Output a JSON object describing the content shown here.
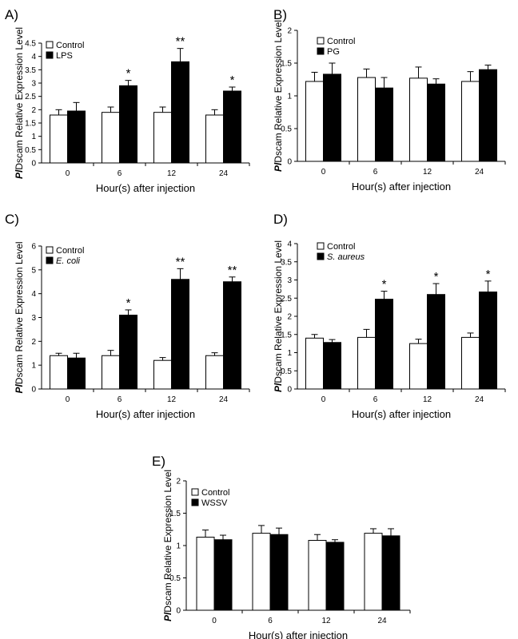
{
  "chart_data": [
    {
      "type": "bar",
      "panel_label": "A)",
      "ylabel_italic": "Pl",
      "ylabel_rest": "Dscam Relative Expression Level",
      "xlabel": "Hour(s) after injection",
      "categories": [
        "0",
        "6",
        "12",
        "24"
      ],
      "ylim": [
        0,
        4.5
      ],
      "yticks": [
        "0",
        "0.5",
        "1",
        "1.5",
        "2",
        "2.5",
        "3",
        "3.5",
        "4",
        "4.5"
      ],
      "legend": {
        "placement": "top-left",
        "items": [
          "Control",
          "LPS"
        ],
        "italic": [
          false,
          false
        ]
      },
      "series": [
        {
          "name": "Control",
          "values": [
            1.8,
            1.9,
            1.9,
            1.8
          ],
          "errors": [
            0.2,
            0.2,
            0.2,
            0.2
          ]
        },
        {
          "name": "LPS",
          "values": [
            1.95,
            2.9,
            3.8,
            2.7
          ],
          "errors": [
            0.32,
            0.2,
            0.5,
            0.15
          ]
        }
      ],
      "significance": [
        "",
        "*",
        "**",
        "*"
      ]
    },
    {
      "type": "bar",
      "panel_label": "B)",
      "ylabel_italic": "Pl",
      "ylabel_rest": "Dscam Relative Expression Level",
      "xlabel": "Hour(s) after injection",
      "categories": [
        "0",
        "6",
        "12",
        "24"
      ],
      "ylim": [
        0,
        2
      ],
      "yticks": [
        "0",
        "0.5",
        "1",
        "1.5",
        "2"
      ],
      "legend": {
        "placement": "top-left",
        "items": [
          "Control",
          "PG"
        ],
        "italic": [
          false,
          false
        ]
      },
      "series": [
        {
          "name": "Control",
          "values": [
            1.22,
            1.28,
            1.27,
            1.22
          ],
          "errors": [
            0.14,
            0.13,
            0.17,
            0.15
          ]
        },
        {
          "name": "PG",
          "values": [
            1.33,
            1.12,
            1.18,
            1.4
          ],
          "errors": [
            0.17,
            0.16,
            0.08,
            0.07
          ]
        }
      ],
      "significance": [
        "",
        "",
        "",
        ""
      ]
    },
    {
      "type": "bar",
      "panel_label": "C)",
      "ylabel_italic": "Pl",
      "ylabel_rest": "Dscam Relative Expression Level",
      "xlabel": "Hour(s) after injection",
      "categories": [
        "0",
        "6",
        "12",
        "24"
      ],
      "ylim": [
        0,
        6
      ],
      "yticks": [
        "0",
        "1",
        "2",
        "3",
        "4",
        "5",
        "6"
      ],
      "legend": {
        "placement": "top-left",
        "items": [
          "Control",
          "E. coli"
        ],
        "italic": [
          false,
          true
        ]
      },
      "series": [
        {
          "name": "Control",
          "values": [
            1.4,
            1.4,
            1.2,
            1.4
          ],
          "errors": [
            0.1,
            0.22,
            0.12,
            0.12
          ]
        },
        {
          "name": "E. coli",
          "values": [
            1.3,
            3.1,
            4.6,
            4.5
          ],
          "errors": [
            0.2,
            0.22,
            0.45,
            0.2
          ]
        }
      ],
      "significance": [
        "",
        "*",
        "**",
        "**"
      ]
    },
    {
      "type": "bar",
      "panel_label": "D)",
      "ylabel_italic": "Pl",
      "ylabel_rest": "Dscam Relative Expression Level",
      "xlabel": "Hour(s) after injection",
      "categories": [
        "0",
        "6",
        "12",
        "24"
      ],
      "ylim": [
        0,
        4
      ],
      "yticks": [
        "0",
        "0.5",
        "1",
        "1.5",
        "2",
        "2.5",
        "3",
        "3.5",
        "4"
      ],
      "legend": {
        "placement": "top-left",
        "items": [
          "Control",
          "S. aureus"
        ],
        "italic": [
          false,
          true
        ]
      },
      "series": [
        {
          "name": "Control",
          "values": [
            1.4,
            1.42,
            1.25,
            1.42
          ],
          "errors": [
            0.1,
            0.22,
            0.12,
            0.12
          ]
        },
        {
          "name": "S. aureus",
          "values": [
            1.28,
            2.47,
            2.6,
            2.67
          ],
          "errors": [
            0.08,
            0.22,
            0.3,
            0.3
          ]
        }
      ],
      "significance": [
        "",
        "*",
        "*",
        "*"
      ]
    },
    {
      "type": "bar",
      "panel_label": "E)",
      "ylabel_italic": "Pl",
      "ylabel_rest": "Dscam Relative Expression Level",
      "xlabel": "Hour(s) after injection",
      "categories": [
        "0",
        "6",
        "12",
        "24"
      ],
      "ylim": [
        0,
        2
      ],
      "yticks": [
        "0",
        "0.5",
        "1",
        "1.5",
        "2"
      ],
      "legend": {
        "placement": "top-left",
        "items": [
          "Control",
          "WSSV"
        ],
        "italic": [
          false,
          false
        ]
      },
      "series": [
        {
          "name": "Control",
          "values": [
            1.13,
            1.19,
            1.08,
            1.19
          ],
          "errors": [
            0.11,
            0.12,
            0.09,
            0.07
          ]
        },
        {
          "name": "WSSV",
          "values": [
            1.09,
            1.17,
            1.05,
            1.15
          ],
          "errors": [
            0.07,
            0.1,
            0.04,
            0.11
          ]
        }
      ],
      "significance": [
        "",
        "",
        "",
        ""
      ]
    }
  ]
}
